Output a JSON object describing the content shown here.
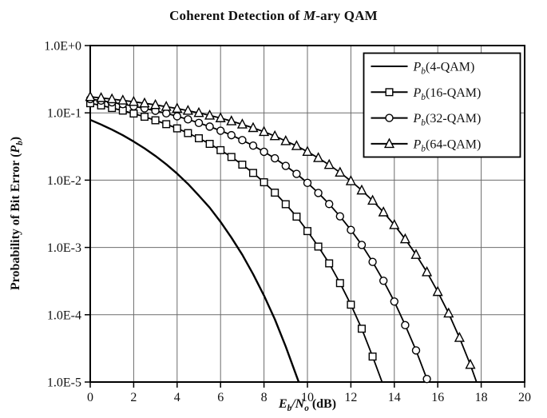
{
  "page": {
    "background": "#ffffff",
    "ink": "#111111"
  },
  "title": {
    "text": "Coherent Detection of M-ary QAM",
    "parts": [
      {
        "t": "Coherent Detection of ",
        "s": "n"
      },
      {
        "t": "M",
        "s": "i"
      },
      {
        "t": "-ary QAM",
        "s": "n"
      }
    ]
  },
  "axes": {
    "x": {
      "label_text": "Eb/No (dB)",
      "label_parts": [
        {
          "t": "E",
          "s": "i"
        },
        {
          "t": "b",
          "s": "isub"
        },
        {
          "t": "/",
          "s": "i"
        },
        {
          "t": "N",
          "s": "i"
        },
        {
          "t": "o",
          "s": "isub"
        },
        {
          "t": " (dB)",
          "s": "n"
        }
      ]
    },
    "y": {
      "label_text": "Probability of Bit Error (Pb)",
      "label_parts": [
        {
          "t": "Probability of Bit Error (",
          "s": "n"
        },
        {
          "t": "P",
          "s": "i"
        },
        {
          "t": "b",
          "s": "isub"
        },
        {
          "t": ")",
          "s": "n"
        }
      ]
    }
  },
  "chart_data": {
    "type": "line",
    "title": "Coherent Detection of M-ary QAM",
    "xlabel": "Eb/No (dB)",
    "ylabel": "Probability of Bit Error (Pb)",
    "x_range": [
      0,
      20
    ],
    "y_scale": "log",
    "y_range": [
      1e-05,
      1.0
    ],
    "grid": true,
    "legend_position": "top-right-inside",
    "x_ticks": [
      0,
      2,
      4,
      6,
      8,
      10,
      12,
      14,
      16,
      18,
      20
    ],
    "x_tick_labels": [
      "0",
      "2",
      "4",
      "6",
      "8",
      "10",
      "12",
      "14",
      "16",
      "18",
      "20"
    ],
    "y_ticks": [
      1.0,
      0.1,
      0.01,
      0.001,
      0.0001,
      1e-05
    ],
    "y_tick_labels": [
      "1.0E+0",
      "1.0E-1",
      "1.0E-2",
      "1.0E-3",
      "1.0E-4",
      "1.0E-5"
    ],
    "colors": {
      "line": "#000000",
      "grid": "#6b6b6b",
      "marker_fill": "#ffffff"
    },
    "series": [
      {
        "id": "4qam",
        "name": "Pb(4-QAM)",
        "label_parts": [
          {
            "t": "P",
            "s": "i"
          },
          {
            "t": "b",
            "s": "isub"
          },
          {
            "t": "(4-QAM)",
            "s": "n"
          }
        ],
        "marker": "none",
        "width": 2.4,
        "x": [
          0,
          0.5,
          1,
          1.5,
          2,
          2.5,
          3,
          3.5,
          4,
          4.5,
          5,
          5.5,
          6,
          6.5,
          7,
          7.5,
          8,
          8.5,
          9,
          9.5,
          9.6
        ],
        "y": [
          0.0786,
          0.067,
          0.0563,
          0.0465,
          0.0375,
          0.0297,
          0.0229,
          0.0172,
          0.0125,
          0.0088,
          0.0059,
          0.0039,
          0.0024,
          0.0014,
          0.00078,
          0.0004,
          0.000193,
          8.55e-05,
          3.37e-05,
          1.22e-05,
          1e-05
        ]
      },
      {
        "id": "16qam",
        "name": "Pb(16-QAM)",
        "label_parts": [
          {
            "t": "P",
            "s": "i"
          },
          {
            "t": "b",
            "s": "isub"
          },
          {
            "t": "(16-QAM)",
            "s": "n"
          }
        ],
        "marker": "square",
        "width": 1.8,
        "x": [
          0,
          0.5,
          1,
          1.5,
          2,
          2.5,
          3,
          3.5,
          4,
          4.5,
          5,
          5.5,
          6,
          6.5,
          7,
          7.5,
          8,
          8.5,
          9,
          9.5,
          10,
          10.5,
          11,
          11.5,
          12,
          12.5,
          13,
          13.5
        ],
        "y": [
          0.139,
          0.129,
          0.118,
          0.108,
          0.0977,
          0.0875,
          0.0776,
          0.0679,
          0.0588,
          0.05,
          0.0419,
          0.0346,
          0.0279,
          0.0221,
          0.017,
          0.0128,
          0.0093,
          0.00652,
          0.00439,
          0.00287,
          0.00175,
          0.00103,
          0.00058,
          0.000295,
          0.000141,
          6.2e-05,
          2.39e-05,
          8.8e-06
        ]
      },
      {
        "id": "32qam",
        "name": "Pb(32-QAM)",
        "label_parts": [
          {
            "t": "P",
            "s": "i"
          },
          {
            "t": "b",
            "s": "isub"
          },
          {
            "t": "(32-QAM)",
            "s": "n"
          }
        ],
        "marker": "circle",
        "width": 1.8,
        "x": [
          0,
          0.5,
          1,
          1.5,
          2,
          2.5,
          3,
          3.5,
          4,
          4.5,
          5,
          5.5,
          6,
          6.5,
          7,
          7.5,
          8,
          8.5,
          9,
          9.5,
          10,
          10.5,
          11,
          11.5,
          12,
          12.5,
          13,
          13.5,
          14,
          14.5,
          15,
          15.5,
          16
        ],
        "y": [
          0.1603,
          0.1521,
          0.1432,
          0.1346,
          0.1255,
          0.1166,
          0.1073,
          0.0983,
          0.0889,
          0.08,
          0.0708,
          0.0625,
          0.0543,
          0.0466,
          0.0393,
          0.0326,
          0.0264,
          0.0211,
          0.0163,
          0.0124,
          0.0091,
          0.00645,
          0.00442,
          0.0029,
          0.00182,
          0.00109,
          0.00061,
          0.00032,
          0.000157,
          7e-05,
          2.95e-05,
          1.11e-05,
          3.6e-06
        ]
      },
      {
        "id": "64qam",
        "name": "Pb(64-QAM)",
        "label_parts": [
          {
            "t": "P",
            "s": "i"
          },
          {
            "t": "b",
            "s": "isub"
          },
          {
            "t": "(64-QAM)",
            "s": "n"
          }
        ],
        "marker": "triangle",
        "width": 1.8,
        "x": [
          0,
          0.5,
          1,
          1.5,
          2,
          2.5,
          3,
          3.5,
          4,
          4.5,
          5,
          5.5,
          6,
          6.5,
          7,
          7.5,
          8,
          8.5,
          9,
          9.5,
          10,
          10.5,
          11,
          11.5,
          12,
          12.5,
          13,
          13.5,
          14,
          14.5,
          15,
          15.5,
          16,
          16.5,
          17,
          17.5,
          18
        ],
        "y": [
          0.173,
          0.1668,
          0.1601,
          0.1534,
          0.1461,
          0.1389,
          0.1313,
          0.1236,
          0.116,
          0.1077,
          0.0999,
          0.0916,
          0.0836,
          0.0754,
          0.0675,
          0.0598,
          0.0523,
          0.0452,
          0.0382,
          0.0323,
          0.0265,
          0.0214,
          0.0169,
          0.013,
          0.0097,
          0.00706,
          0.00497,
          0.00334,
          0.00216,
          0.00133,
          0.00078,
          0.00043,
          0.000219,
          0.000105,
          4.55e-05,
          1.81e-05,
          6.4e-06
        ]
      }
    ]
  }
}
